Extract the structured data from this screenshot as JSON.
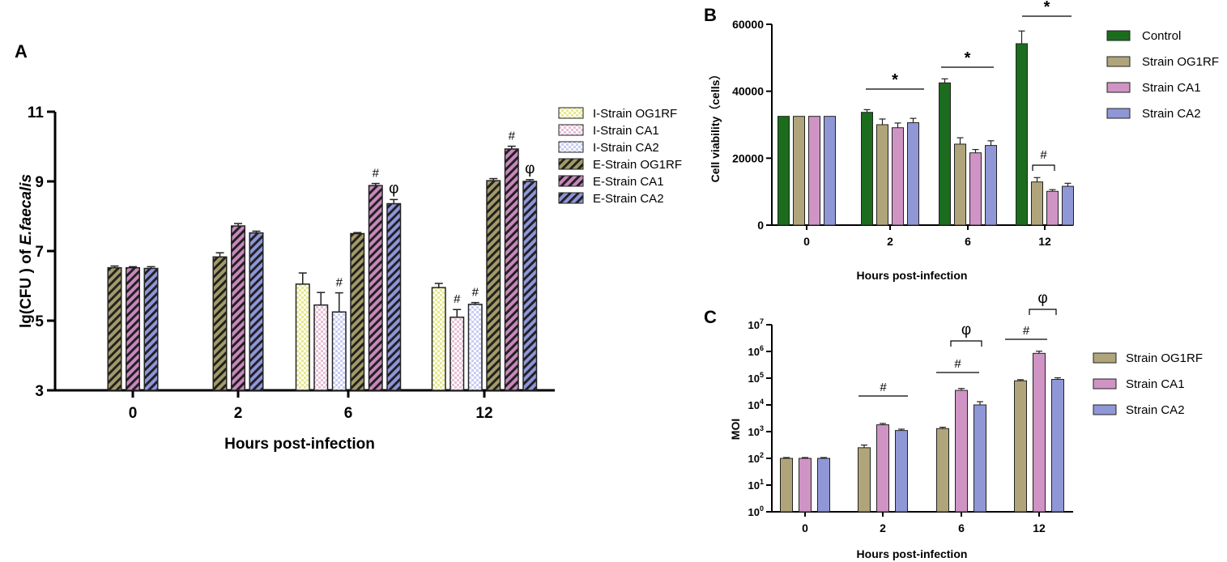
{
  "chart_data": [
    {
      "panel": "A",
      "type": "bar",
      "title": "",
      "xlabel": "Hours post-infection",
      "ylabel_prefix": "lg(CFU ) of ",
      "ylabel_italic": "E.faecalis",
      "categories": [
        "0",
        "2",
        "6",
        "12"
      ],
      "ylim": [
        3,
        11
      ],
      "yticks": [
        "3",
        "5",
        "7",
        "9",
        "11"
      ],
      "grid": false,
      "legend_position": "right",
      "series": [
        {
          "name": "I-Strain OG1RF",
          "pattern": "check",
          "color": "#e6e98c",
          "values": [
            null,
            null,
            6.05,
            5.95
          ],
          "errors": [
            0,
            0,
            0.32,
            0.12
          ]
        },
        {
          "name": "I-Strain CA1",
          "pattern": "check",
          "color": "#e8bfd6",
          "values": [
            null,
            null,
            5.45,
            5.1
          ],
          "errors": [
            0,
            0,
            0.36,
            0.22
          ]
        },
        {
          "name": "I-Strain CA2",
          "pattern": "check",
          "color": "#c9cdf3",
          "values": [
            null,
            null,
            5.25,
            5.47
          ],
          "errors": [
            0,
            0,
            0.55,
            0.05
          ]
        },
        {
          "name": "E-Strain OG1RF",
          "pattern": "stripe",
          "color": "#a39b67",
          "values": [
            6.52,
            6.83,
            7.5,
            9.02
          ],
          "errors": [
            0.05,
            0.12,
            0.03,
            0.06
          ]
        },
        {
          "name": "E-Strain CA1",
          "pattern": "stripe",
          "color": "#c987bd",
          "values": [
            6.52,
            7.72,
            8.88,
            9.93
          ],
          "errors": [
            0.03,
            0.07,
            0.06,
            0.08
          ]
        },
        {
          "name": "E-Strain CA2",
          "pattern": "stripe",
          "color": "#8f95d9",
          "values": [
            6.5,
            7.52,
            8.36,
            9.0
          ],
          "errors": [
            0.05,
            0.05,
            0.12,
            0.05
          ]
        }
      ],
      "annotations": [
        {
          "text": "#",
          "category": "6",
          "series": "I-Strain CA2"
        },
        {
          "text": "#",
          "category": "6",
          "series": "E-Strain CA1"
        },
        {
          "text": "φ",
          "category": "6",
          "series": "E-Strain CA2"
        },
        {
          "text": "#",
          "category": "12",
          "series": "I-Strain CA1"
        },
        {
          "text": "#",
          "category": "12",
          "series": "I-Strain CA2"
        },
        {
          "text": "#",
          "category": "12",
          "series": "E-Strain CA1"
        },
        {
          "text": "φ",
          "category": "12",
          "series": "E-Strain CA2"
        }
      ]
    },
    {
      "panel": "B",
      "type": "bar",
      "title": "",
      "xlabel": "Hours post-infection",
      "ylabel": "Cell viability（cells）",
      "categories": [
        "0",
        "2",
        "6",
        "12"
      ],
      "ylim": [
        0,
        60000
      ],
      "yticks": [
        "0",
        "20000",
        "40000",
        "60000"
      ],
      "grid": false,
      "legend_position": "right",
      "series": [
        {
          "name": "Control",
          "color": "#1b6c1d",
          "values": [
            32500,
            33700,
            42500,
            54200
          ],
          "errors": [
            0,
            800,
            1200,
            3800
          ]
        },
        {
          "name": "Strain OG1RF",
          "color": "#b0a57a",
          "values": [
            32500,
            30000,
            24200,
            12900
          ],
          "errors": [
            0,
            1700,
            1900,
            1300
          ]
        },
        {
          "name": "Strain CA1",
          "color": "#cf94c4",
          "values": [
            32500,
            29100,
            21600,
            10100
          ],
          "errors": [
            0,
            1400,
            1000,
            500
          ]
        },
        {
          "name": "Strain CA2",
          "color": "#9097d6",
          "values": [
            32500,
            30600,
            23800,
            11600
          ],
          "errors": [
            0,
            1300,
            1400,
            900
          ]
        }
      ],
      "annotations": [
        {
          "text": "*",
          "category": "2"
        },
        {
          "text": "*",
          "category": "6"
        },
        {
          "text": "*",
          "category": "12"
        },
        {
          "text": "#",
          "category": "12"
        }
      ]
    },
    {
      "panel": "C",
      "type": "bar",
      "title": "",
      "xlabel": "Hours post-infection",
      "ylabel": "MOI",
      "yscale": "log10",
      "categories": [
        "0",
        "2",
        "6",
        "12"
      ],
      "ylim": [
        1,
        10000000
      ],
      "ytick_exponents": [
        "0",
        "1",
        "2",
        "3",
        "4",
        "5",
        "6",
        "7"
      ],
      "ytick_base": "10",
      "grid": false,
      "legend_position": "right",
      "series": [
        {
          "name": "Strain OG1RF",
          "color": "#b0a57a",
          "values": [
            100,
            250,
            1300,
            80000
          ],
          "log_err": [
            0.03,
            0.1,
            0.05,
            0.04
          ]
        },
        {
          "name": "Strain CA1",
          "color": "#cf94c4",
          "values": [
            100,
            1800,
            35000,
            850000
          ],
          "log_err": [
            0.03,
            0.05,
            0.07,
            0.08
          ]
        },
        {
          "name": "Strain CA2",
          "color": "#9097d6",
          "values": [
            100,
            1100,
            10000,
            90000
          ],
          "log_err": [
            0.03,
            0.05,
            0.12,
            0.06
          ]
        }
      ],
      "annotations": [
        {
          "text": "#",
          "category": "2"
        },
        {
          "text": "#",
          "category": "6"
        },
        {
          "text": "φ",
          "category": "6"
        },
        {
          "text": "#",
          "category": "12"
        },
        {
          "text": "φ",
          "category": "12"
        }
      ]
    }
  ]
}
